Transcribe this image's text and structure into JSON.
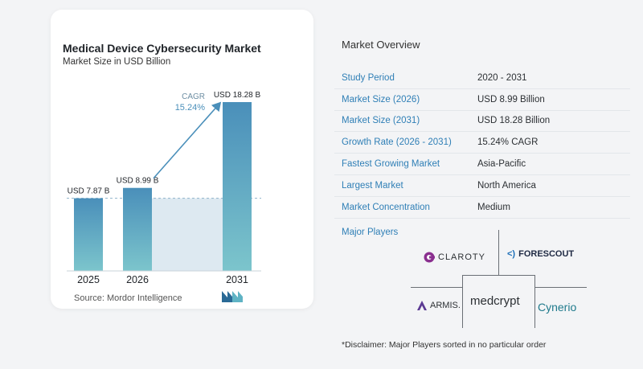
{
  "chart_data": {
    "type": "bar",
    "title": "Medical Device Cybersecurity Market",
    "subtitle": "Market Size in USD Billion",
    "categories": [
      "2025",
      "2026",
      "2031"
    ],
    "values": [
      7.87,
      8.99,
      18.28
    ],
    "data_labels": [
      "USD 7.87 B",
      "USD 8.99 B",
      "USD 18.28 B"
    ],
    "ylim": [
      0,
      18.28
    ],
    "annotation": {
      "label": "CAGR",
      "value": "15.24%"
    },
    "bar_color": "#4a8fba",
    "source": "Source:  Mordor Intelligence"
  },
  "overview": {
    "title": "Market Overview",
    "rows": [
      {
        "label": "Study Period",
        "value": "2020 - 2031"
      },
      {
        "label": "Market Size (2026)",
        "value": "USD 8.99 Billion"
      },
      {
        "label": "Market Size (2031)",
        "value": "USD 18.28 Billion"
      },
      {
        "label": "Growth Rate (2026 - 2031)",
        "value": "15.24% CAGR"
      },
      {
        "label": "Fastest Growing Market",
        "value": "Asia-Pacific"
      },
      {
        "label": "Largest Market",
        "value": "North America"
      },
      {
        "label": "Market Concentration",
        "value": "Medium"
      }
    ]
  },
  "players": {
    "title": "Major Players",
    "names": [
      "CLAROTY",
      "FORESCOUT",
      "ARMIS.",
      "medcrypt",
      "Cynerio"
    ]
  },
  "disclaimer": "*Disclaimer: Major Players sorted in no particular order",
  "colors": {
    "accent": "#2f7fb6",
    "bar": "#4a8fba",
    "bar_fade": "#7cc5cc",
    "band": "#d4e4ee"
  }
}
